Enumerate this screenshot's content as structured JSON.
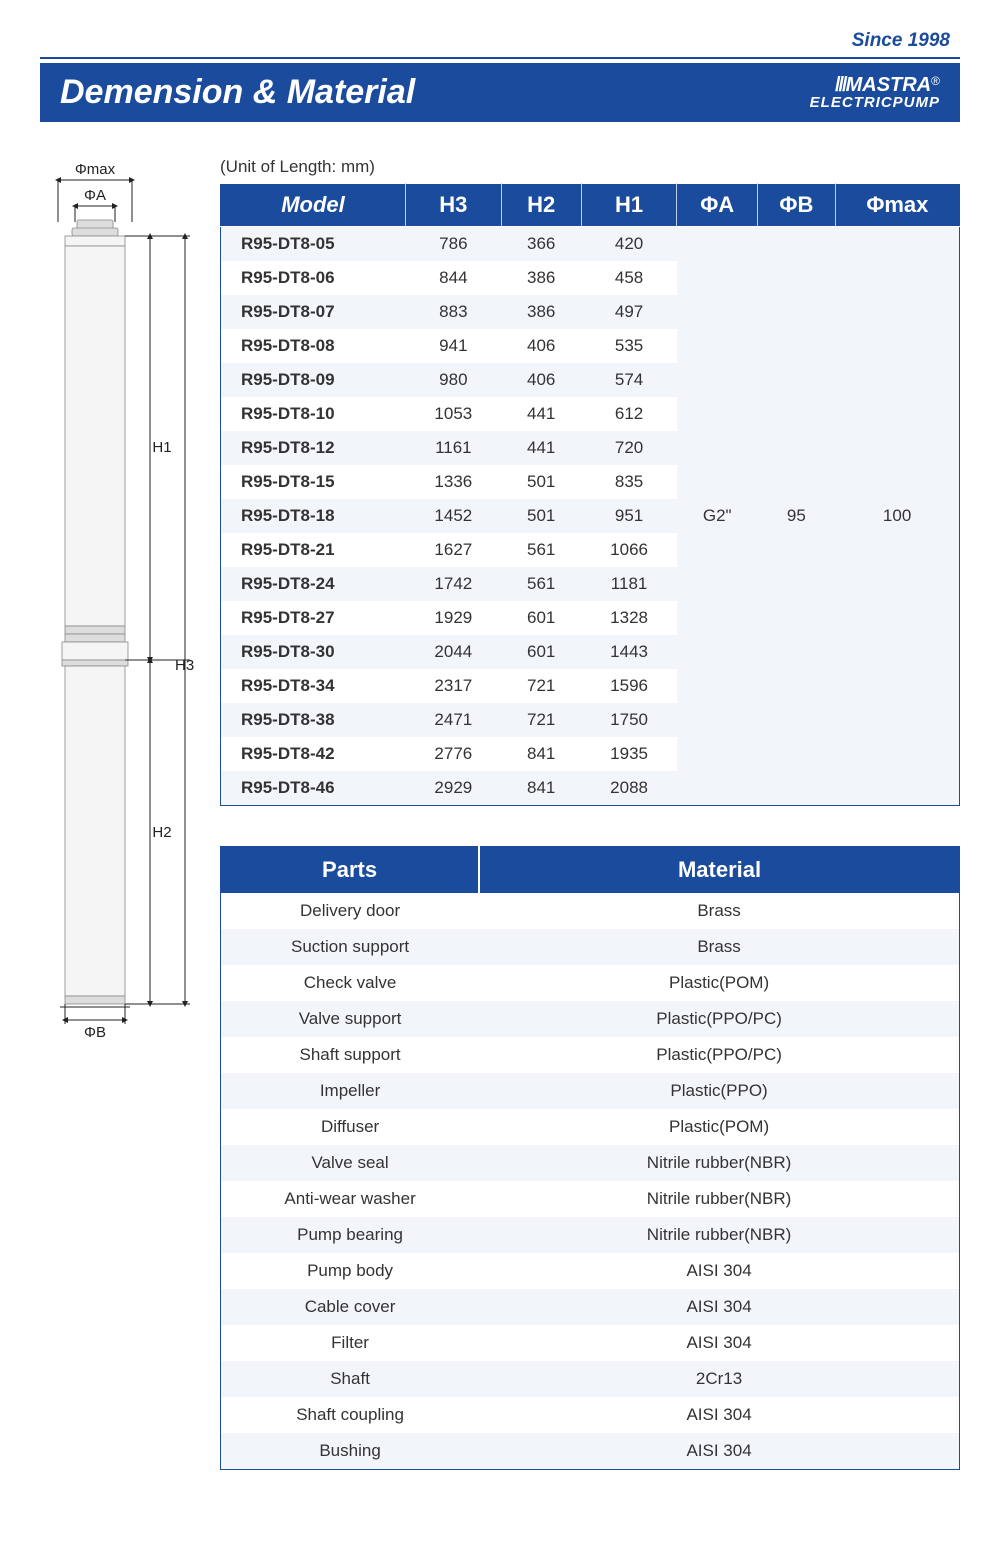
{
  "header": {
    "since": "Since 1998",
    "title": "Demension & Material",
    "brand_text": "MASTRA",
    "brand_sub": "ELECTRICPUMP"
  },
  "unit_label": "(Unit of Length: mm)",
  "dims_table": {
    "columns": [
      "Model",
      "H3",
      "H2",
      "H1",
      "ΦA",
      "ΦB",
      "Φmax"
    ],
    "rows": [
      [
        "R95-DT8-05",
        "786",
        "366",
        "420"
      ],
      [
        "R95-DT8-06",
        "844",
        "386",
        "458"
      ],
      [
        "R95-DT8-07",
        "883",
        "386",
        "497"
      ],
      [
        "R95-DT8-08",
        "941",
        "406",
        "535"
      ],
      [
        "R95-DT8-09",
        "980",
        "406",
        "574"
      ],
      [
        "R95-DT8-10",
        "1053",
        "441",
        "612"
      ],
      [
        "R95-DT8-12",
        "1161",
        "441",
        "720"
      ],
      [
        "R95-DT8-15",
        "1336",
        "501",
        "835"
      ],
      [
        "R95-DT8-18",
        "1452",
        "501",
        "951"
      ],
      [
        "R95-DT8-21",
        "1627",
        "561",
        "1066"
      ],
      [
        "R95-DT8-24",
        "1742",
        "561",
        "1181"
      ],
      [
        "R95-DT8-27",
        "1929",
        "601",
        "1328"
      ],
      [
        "R95-DT8-30",
        "2044",
        "601",
        "1443"
      ],
      [
        "R95-DT8-34",
        "2317",
        "721",
        "1596"
      ],
      [
        "R95-DT8-38",
        "2471",
        "721",
        "1750"
      ],
      [
        "R95-DT8-42",
        "2776",
        "841",
        "1935"
      ],
      [
        "R95-DT8-46",
        "2929",
        "841",
        "2088"
      ]
    ],
    "merged": {
      "phiA": "G2\"",
      "phiB": "95",
      "phimax": "100"
    }
  },
  "mats_table": {
    "columns": [
      "Parts",
      "Material"
    ],
    "rows": [
      [
        "Delivery door",
        "Brass"
      ],
      [
        "Suction support",
        "Brass"
      ],
      [
        "Check valve",
        "Plastic(POM)"
      ],
      [
        "Valve support",
        "Plastic(PPO/PC)"
      ],
      [
        "Shaft support",
        "Plastic(PPO/PC)"
      ],
      [
        "Impeller",
        "Plastic(PPO)"
      ],
      [
        "Diffuser",
        "Plastic(POM)"
      ],
      [
        "Valve seal",
        "Nitrile rubber(NBR)"
      ],
      [
        "Anti-wear washer",
        "Nitrile rubber(NBR)"
      ],
      [
        "Pump bearing",
        "Nitrile rubber(NBR)"
      ],
      [
        "Pump body",
        "AISI 304"
      ],
      [
        "Cable cover",
        "AISI 304"
      ],
      [
        "Filter",
        "AISI 304"
      ],
      [
        "Shaft",
        "2Cr13"
      ],
      [
        "Shaft coupling",
        "AISI 304"
      ],
      [
        "Bushing",
        "AISI 304"
      ]
    ]
  },
  "diagram": {
    "labels": {
      "phimax": "Φmax",
      "phiA": "ΦA",
      "phiB": "ΦB",
      "H1": "H1",
      "H2": "H2",
      "H3": "H3"
    }
  },
  "colors": {
    "brand_blue": "#1a4b9c",
    "row_alt": "#f2f6fb",
    "row_bg": "#ffffff"
  }
}
